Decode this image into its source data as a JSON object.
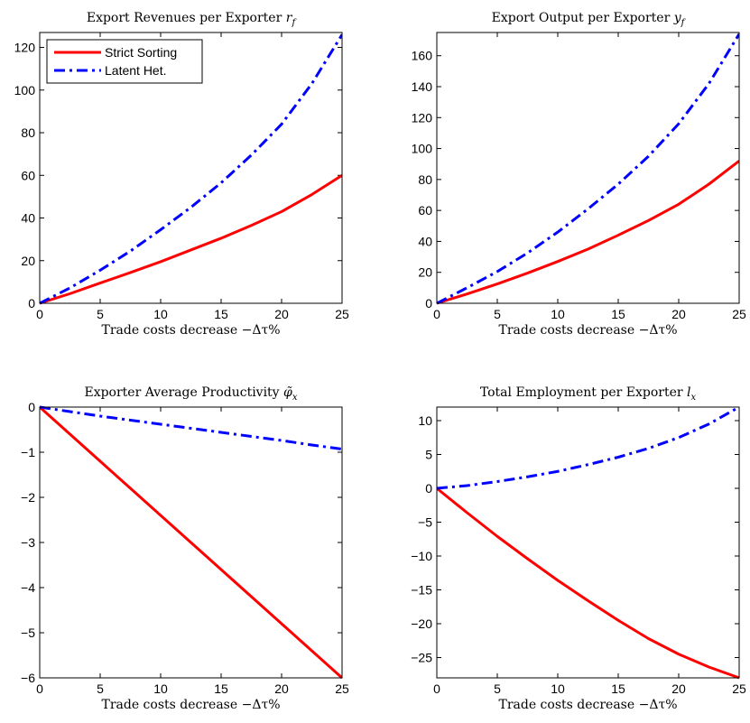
{
  "chart_data": [
    {
      "type": "line",
      "title": "Export Revenues per Exporter r_f",
      "xlabel": "Trade costs decrease −Δτ%",
      "ylabel": "",
      "xlim": [
        0,
        25
      ],
      "ylim": [
        0,
        127
      ],
      "xticks": [
        0,
        5,
        10,
        15,
        20,
        25
      ],
      "yticks": [
        0,
        20,
        40,
        60,
        80,
        100,
        120
      ],
      "legend": "top-left",
      "x": [
        0,
        2.5,
        5,
        7.5,
        10,
        12.5,
        15,
        17.5,
        20,
        22.5,
        25
      ],
      "series": [
        {
          "name": "Strict Sorting",
          "color": "#ff0000",
          "style": "solid",
          "values": [
            0,
            4.5,
            9.5,
            14.4,
            19.5,
            25,
            30.5,
            36.5,
            43,
            51,
            60
          ]
        },
        {
          "name": "Latent Het.",
          "color": "#0000ff",
          "style": "dashdot",
          "values": [
            0,
            7.2,
            15.5,
            24.5,
            34.5,
            45,
            56.5,
            69.5,
            84,
            103,
            126
          ]
        }
      ]
    },
    {
      "type": "line",
      "title": "Export Output per Exporter y_f",
      "xlabel": "Trade costs decrease −Δτ%",
      "ylabel": "",
      "xlim": [
        0,
        25
      ],
      "ylim": [
        0,
        175
      ],
      "xticks": [
        0,
        5,
        10,
        15,
        20,
        25
      ],
      "yticks": [
        0,
        20,
        40,
        60,
        80,
        100,
        120,
        140,
        160
      ],
      "legend": "none",
      "x": [
        0,
        2.5,
        5,
        7.5,
        10,
        12.5,
        15,
        17.5,
        20,
        22.5,
        25
      ],
      "series": [
        {
          "name": "Strict Sorting",
          "color": "#ff0000",
          "style": "solid",
          "values": [
            0,
            6,
            12.5,
            19.5,
            27,
            35,
            44,
            53.5,
            64,
            77,
            92
          ]
        },
        {
          "name": "Latent Het.",
          "color": "#0000ff",
          "style": "dashdot",
          "values": [
            0,
            10,
            20.5,
            32.5,
            46,
            61,
            77,
            95,
            116,
            142,
            174
          ]
        }
      ]
    },
    {
      "type": "line",
      "title": "Exporter Average Productivity φ̃_x",
      "xlabel": "Trade costs decrease −Δτ%",
      "ylabel": "",
      "xlim": [
        0,
        25
      ],
      "ylim": [
        -6,
        0
      ],
      "xticks": [
        0,
        5,
        10,
        15,
        20,
        25
      ],
      "yticks": [
        -6,
        -5,
        -4,
        -3,
        -2,
        -1,
        0
      ],
      "legend": "none",
      "x": [
        0,
        2.5,
        5,
        7.5,
        10,
        12.5,
        15,
        17.5,
        20,
        22.5,
        25
      ],
      "series": [
        {
          "name": "Strict Sorting",
          "color": "#ff0000",
          "style": "solid",
          "values": [
            0,
            -0.6,
            -1.2,
            -1.8,
            -2.4,
            -3.0,
            -3.6,
            -4.2,
            -4.8,
            -5.4,
            -6.0
          ]
        },
        {
          "name": "Latent Het.",
          "color": "#0000ff",
          "style": "dashdot",
          "values": [
            0,
            -0.1,
            -0.2,
            -0.29,
            -0.38,
            -0.47,
            -0.56,
            -0.65,
            -0.74,
            -0.84,
            -0.93
          ]
        }
      ]
    },
    {
      "type": "line",
      "title": "Total Employment per Exporter l_x",
      "xlabel": "Trade costs decrease −Δτ%",
      "ylabel": "",
      "xlim": [
        0,
        25
      ],
      "ylim": [
        -28,
        12
      ],
      "xticks": [
        0,
        5,
        10,
        15,
        20,
        25
      ],
      "yticks": [
        -25,
        -20,
        -15,
        -10,
        -5,
        0,
        5,
        10
      ],
      "legend": "none",
      "x": [
        0,
        2.5,
        5,
        7.5,
        10,
        12.5,
        15,
        17.5,
        20,
        22.5,
        25
      ],
      "series": [
        {
          "name": "Strict Sorting",
          "color": "#ff0000",
          "style": "solid",
          "values": [
            0,
            -3.6,
            -7.1,
            -10.4,
            -13.6,
            -16.6,
            -19.5,
            -22.2,
            -24.5,
            -26.4,
            -28
          ]
        },
        {
          "name": "Latent Het.",
          "color": "#0000ff",
          "style": "dashdot",
          "values": [
            0,
            0.4,
            1.0,
            1.7,
            2.5,
            3.5,
            4.6,
            5.9,
            7.5,
            9.5,
            12
          ]
        }
      ]
    }
  ]
}
